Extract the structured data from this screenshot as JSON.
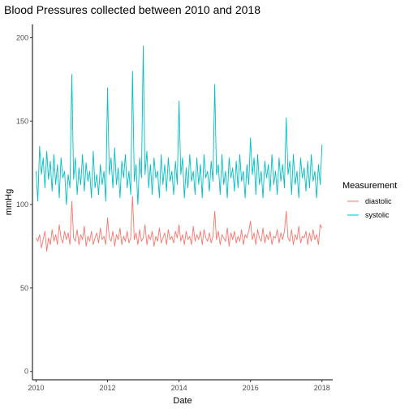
{
  "chart_data": {
    "type": "line",
    "title": "Blood Pressures collected between 2010 and 2018",
    "xlabel": "Date",
    "ylabel": "mmHg",
    "xlim": [
      2009.9,
      2018.3
    ],
    "ylim": [
      -5,
      208
    ],
    "x_ticks": [
      {
        "value": 2010,
        "label": "2010"
      },
      {
        "value": 2012,
        "label": "2012"
      },
      {
        "value": 2014,
        "label": "2014"
      },
      {
        "value": 2016,
        "label": "2016"
      },
      {
        "value": 2018,
        "label": "2018"
      }
    ],
    "y_ticks": [
      {
        "value": 0,
        "label": "0"
      },
      {
        "value": 50,
        "label": "50"
      },
      {
        "value": 100,
        "label": "100"
      },
      {
        "value": 150,
        "label": "150"
      },
      {
        "value": 200,
        "label": "200"
      }
    ],
    "grid": false,
    "legend": {
      "title": "Measurement",
      "position": "right"
    },
    "series": [
      {
        "name": "diastolic",
        "color": "#F8766D",
        "x": [
          2010.0,
          2010.05,
          2010.1,
          2010.15,
          2010.2,
          2010.25,
          2010.3,
          2010.35,
          2010.4,
          2010.45,
          2010.5,
          2010.55,
          2010.6,
          2010.65,
          2010.7,
          2010.75,
          2010.8,
          2010.85,
          2010.9,
          2010.95,
          2011.0,
          2011.05,
          2011.1,
          2011.15,
          2011.2,
          2011.25,
          2011.3,
          2011.35,
          2011.4,
          2011.45,
          2011.5,
          2011.55,
          2011.6,
          2011.65,
          2011.7,
          2011.75,
          2011.8,
          2011.85,
          2011.9,
          2011.95,
          2012.0,
          2012.05,
          2012.1,
          2012.15,
          2012.2,
          2012.25,
          2012.3,
          2012.35,
          2012.4,
          2012.45,
          2012.5,
          2012.55,
          2012.6,
          2012.65,
          2012.7,
          2012.75,
          2012.8,
          2012.85,
          2012.9,
          2012.95,
          2013.0,
          2013.05,
          2013.1,
          2013.15,
          2013.2,
          2013.25,
          2013.3,
          2013.35,
          2013.4,
          2013.45,
          2013.5,
          2013.55,
          2013.6,
          2013.65,
          2013.7,
          2013.75,
          2013.8,
          2013.85,
          2013.9,
          2013.95,
          2014.0,
          2014.05,
          2014.1,
          2014.15,
          2014.2,
          2014.25,
          2014.3,
          2014.35,
          2014.4,
          2014.45,
          2014.5,
          2014.55,
          2014.6,
          2014.65,
          2014.7,
          2014.75,
          2014.8,
          2014.85,
          2014.9,
          2014.95,
          2015.0,
          2015.05,
          2015.1,
          2015.15,
          2015.2,
          2015.25,
          2015.3,
          2015.35,
          2015.4,
          2015.45,
          2015.5,
          2015.55,
          2015.6,
          2015.65,
          2015.7,
          2015.75,
          2015.8,
          2015.85,
          2015.9,
          2015.95,
          2016.0,
          2016.05,
          2016.1,
          2016.15,
          2016.2,
          2016.25,
          2016.3,
          2016.35,
          2016.4,
          2016.45,
          2016.5,
          2016.55,
          2016.6,
          2016.65,
          2016.7,
          2016.75,
          2016.8,
          2016.85,
          2016.9,
          2016.95,
          2017.0,
          2017.05,
          2017.1,
          2017.15,
          2017.2,
          2017.25,
          2017.3,
          2017.35,
          2017.4,
          2017.45,
          2017.5,
          2017.55,
          2017.6,
          2017.65,
          2017.7,
          2017.75,
          2017.8,
          2017.85,
          2017.9,
          2017.95,
          2018.0
        ],
        "y": [
          80,
          78,
          82,
          74,
          79,
          84,
          72,
          80,
          76,
          85,
          78,
          82,
          76,
          88,
          80,
          77,
          84,
          79,
          83,
          76,
          102,
          80,
          78,
          85,
          76,
          82,
          79,
          87,
          75,
          81,
          78,
          84,
          76,
          80,
          83,
          77,
          86,
          79,
          81,
          76,
          92,
          80,
          78,
          84,
          75,
          82,
          79,
          86,
          76,
          81,
          78,
          84,
          77,
          80,
          105,
          79,
          83,
          76,
          85,
          78,
          80,
          88,
          76,
          82,
          79,
          84,
          75,
          81,
          78,
          86,
          77,
          80,
          83,
          76,
          85,
          79,
          81,
          77,
          84,
          80,
          88,
          78,
          82,
          76,
          84,
          79,
          81,
          76,
          87,
          78,
          82,
          79,
          84,
          76,
          85,
          80,
          78,
          83,
          77,
          81,
          96,
          79,
          84,
          76,
          82,
          80,
          78,
          86,
          75,
          83,
          79,
          84,
          77,
          81,
          78,
          85,
          76,
          82,
          80,
          84,
          90,
          79,
          83,
          76,
          85,
          80,
          78,
          86,
          77,
          82,
          79,
          84,
          76,
          81,
          80,
          85,
          77,
          83,
          79,
          84,
          96,
          80,
          78,
          85,
          76,
          82,
          79,
          87,
          77,
          81,
          80,
          84,
          76,
          83,
          78,
          85,
          79,
          82,
          76,
          88,
          86
        ]
      },
      {
        "name": "systolic",
        "color": "#00BFC4",
        "x": [
          2010.0,
          2010.05,
          2010.1,
          2010.15,
          2010.2,
          2010.25,
          2010.3,
          2010.35,
          2010.4,
          2010.45,
          2010.5,
          2010.55,
          2010.6,
          2010.65,
          2010.7,
          2010.75,
          2010.8,
          2010.85,
          2010.9,
          2010.95,
          2011.0,
          2011.05,
          2011.1,
          2011.15,
          2011.2,
          2011.25,
          2011.3,
          2011.35,
          2011.4,
          2011.45,
          2011.5,
          2011.55,
          2011.6,
          2011.65,
          2011.7,
          2011.75,
          2011.8,
          2011.85,
          2011.9,
          2011.95,
          2012.0,
          2012.05,
          2012.1,
          2012.15,
          2012.2,
          2012.25,
          2012.3,
          2012.35,
          2012.4,
          2012.45,
          2012.5,
          2012.55,
          2012.6,
          2012.65,
          2012.7,
          2012.75,
          2012.8,
          2012.85,
          2012.9,
          2012.95,
          2013.0,
          2013.05,
          2013.1,
          2013.15,
          2013.2,
          2013.25,
          2013.3,
          2013.35,
          2013.4,
          2013.45,
          2013.5,
          2013.55,
          2013.6,
          2013.65,
          2013.7,
          2013.75,
          2013.8,
          2013.85,
          2013.9,
          2013.95,
          2014.0,
          2014.05,
          2014.1,
          2014.15,
          2014.2,
          2014.25,
          2014.3,
          2014.35,
          2014.4,
          2014.45,
          2014.5,
          2014.55,
          2014.6,
          2014.65,
          2014.7,
          2014.75,
          2014.8,
          2014.85,
          2014.9,
          2014.95,
          2015.0,
          2015.05,
          2015.1,
          2015.15,
          2015.2,
          2015.25,
          2015.3,
          2015.35,
          2015.4,
          2015.45,
          2015.5,
          2015.55,
          2015.6,
          2015.65,
          2015.7,
          2015.75,
          2015.8,
          2015.85,
          2015.9,
          2015.95,
          2016.0,
          2016.05,
          2016.1,
          2016.15,
          2016.2,
          2016.25,
          2016.3,
          2016.35,
          2016.4,
          2016.45,
          2016.5,
          2016.55,
          2016.6,
          2016.65,
          2016.7,
          2016.75,
          2016.8,
          2016.85,
          2016.9,
          2016.95,
          2017.0,
          2017.05,
          2017.1,
          2017.15,
          2017.2,
          2017.25,
          2017.3,
          2017.35,
          2017.4,
          2017.45,
          2017.5,
          2017.55,
          2017.6,
          2017.65,
          2017.7,
          2017.75,
          2017.8,
          2017.85,
          2017.9,
          2017.95,
          2018.0
        ],
        "y": [
          120,
          102,
          135,
          118,
          128,
          110,
          132,
          115,
          126,
          108,
          130,
          112,
          124,
          104,
          128,
          116,
          120,
          100,
          118,
          110,
          178,
          115,
          128,
          106,
          122,
          112,
          130,
          108,
          125,
          114,
          120,
          104,
          132,
          110,
          118,
          106,
          124,
          112,
          120,
          102,
          170,
          118,
          128,
          110,
          134,
          112,
          122,
          104,
          126,
          116,
          130,
          110,
          120,
          106,
          180,
          114,
          124,
          100,
          128,
          116,
          195,
          118,
          132,
          110,
          124,
          106,
          128,
          116,
          120,
          104,
          130,
          112,
          124,
          108,
          128,
          114,
          120,
          106,
          126,
          112,
          162,
          118,
          128,
          104,
          122,
          110,
          130,
          114,
          120,
          106,
          128,
          112,
          124,
          104,
          130,
          116,
          120,
          108,
          126,
          114,
          172,
          118,
          124,
          106,
          130,
          112,
          120,
          104,
          128,
          116,
          122,
          108,
          126,
          110,
          130,
          114,
          120,
          104,
          124,
          112,
          140,
          118,
          128,
          106,
          130,
          112,
          120,
          104,
          126,
          116,
          124,
          108,
          130,
          112,
          120,
          106,
          128,
          114,
          124,
          110,
          152,
          118,
          126,
          106,
          130,
          112,
          120,
          104,
          128,
          116,
          122,
          108,
          126,
          110,
          130,
          114,
          120,
          104,
          124,
          112,
          136
        ]
      }
    ]
  }
}
